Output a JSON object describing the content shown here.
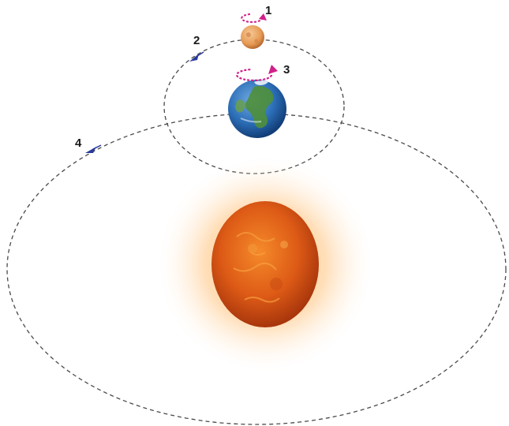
{
  "diagram": {
    "markers": [
      {
        "id": "1",
        "label": "1"
      },
      {
        "id": "2",
        "label": "2"
      },
      {
        "id": "3",
        "label": "3"
      },
      {
        "id": "4",
        "label": "4"
      }
    ],
    "bodies": {
      "moon": "moon",
      "earth": "earth",
      "sun": "sun"
    },
    "colors": {
      "orbit_line": "#4a4a4a",
      "arrow_blue": "#2a3a9a",
      "spin_arrow_magenta": "#d0208a",
      "label_text": "#1a1a1a",
      "sun_core": "#d9561a",
      "sun_glow": "#ffb866",
      "earth_ocean": "#2c6fb8",
      "earth_land": "#4f8f3a",
      "moon_surface": "#e6a060"
    }
  }
}
